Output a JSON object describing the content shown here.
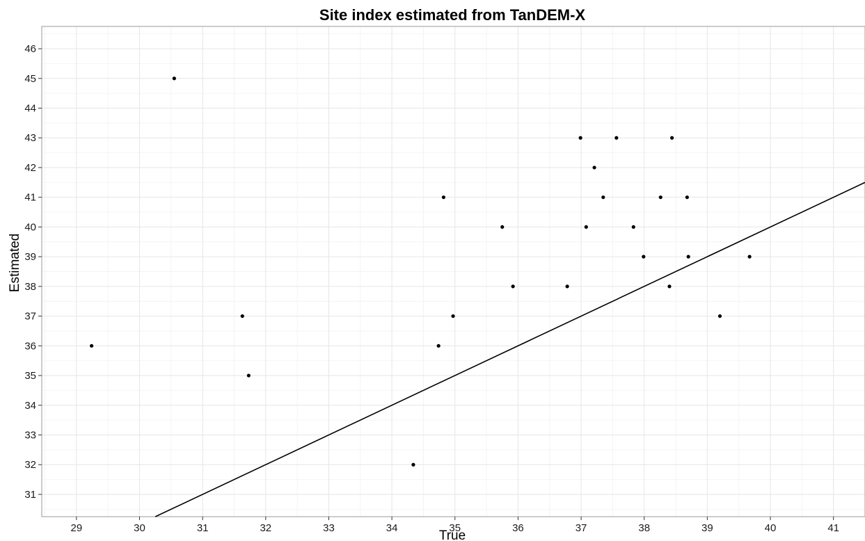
{
  "chart_data": {
    "type": "scatter",
    "title": "Site index estimated from TanDEM-X",
    "xlabel": "True",
    "ylabel": "Estimated",
    "xlim": [
      28.45,
      41.5
    ],
    "ylim": [
      30.25,
      46.75
    ],
    "xticks": [
      29,
      30,
      31,
      32,
      33,
      34,
      35,
      36,
      37,
      38,
      39,
      40,
      41
    ],
    "yticks": [
      31,
      32,
      33,
      34,
      35,
      36,
      37,
      38,
      39,
      40,
      41,
      42,
      43,
      44,
      45,
      46
    ],
    "grid": true,
    "reference_line": {
      "type": "identity",
      "slope": 1,
      "intercept": 0
    },
    "points": [
      {
        "x": 29.24,
        "y": 36
      },
      {
        "x": 30.55,
        "y": 45
      },
      {
        "x": 31.63,
        "y": 37
      },
      {
        "x": 31.73,
        "y": 35
      },
      {
        "x": 34.34,
        "y": 32
      },
      {
        "x": 34.74,
        "y": 36
      },
      {
        "x": 34.82,
        "y": 41
      },
      {
        "x": 34.97,
        "y": 37
      },
      {
        "x": 35.75,
        "y": 40
      },
      {
        "x": 35.92,
        "y": 38
      },
      {
        "x": 36.78,
        "y": 38
      },
      {
        "x": 36.99,
        "y": 43
      },
      {
        "x": 37.08,
        "y": 40
      },
      {
        "x": 37.21,
        "y": 42
      },
      {
        "x": 37.35,
        "y": 41
      },
      {
        "x": 37.56,
        "y": 43
      },
      {
        "x": 37.83,
        "y": 40
      },
      {
        "x": 37.99,
        "y": 39
      },
      {
        "x": 38.26,
        "y": 41
      },
      {
        "x": 38.4,
        "y": 38
      },
      {
        "x": 38.44,
        "y": 43
      },
      {
        "x": 38.68,
        "y": 41
      },
      {
        "x": 38.7,
        "y": 39
      },
      {
        "x": 39.2,
        "y": 37
      },
      {
        "x": 39.67,
        "y": 39
      }
    ]
  }
}
